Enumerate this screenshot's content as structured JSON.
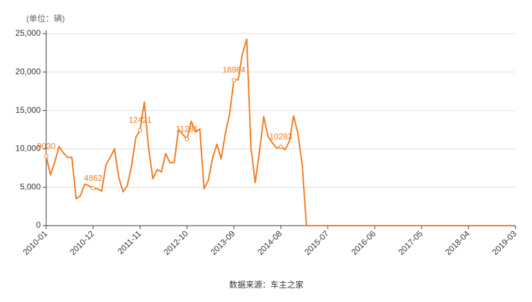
{
  "chart_data": {
    "type": "line",
    "unit_label": "(单位：辆)",
    "source": "数据来源：车主之家",
    "color": "#f47a1f",
    "grid": true,
    "categories": [
      "2010-01",
      null,
      null,
      null,
      null,
      null,
      null,
      null,
      null,
      null,
      null,
      "2010-12",
      null,
      null,
      null,
      null,
      null,
      null,
      null,
      null,
      null,
      null,
      "2011-11",
      null,
      null,
      null,
      null,
      null,
      null,
      null,
      null,
      null,
      null,
      "2012-10",
      null,
      null,
      null,
      null,
      null,
      null,
      null,
      null,
      null,
      null,
      "2013-09",
      null,
      null,
      null,
      null,
      null,
      null,
      null,
      null,
      null,
      null,
      "2014-08",
      null,
      null,
      null,
      null,
      null,
      null,
      null,
      null,
      null,
      null,
      "2015-07",
      null,
      null,
      null,
      null,
      null,
      null,
      null,
      null,
      null,
      null,
      "2016-06",
      null,
      null,
      null,
      null,
      null,
      null,
      null,
      null,
      null,
      null,
      "2017-05",
      null,
      null,
      null,
      null,
      null,
      null,
      null,
      null,
      null,
      null,
      "2018-04",
      null,
      null,
      null,
      null,
      null,
      null,
      null,
      null,
      null,
      null,
      "2019-03"
    ],
    "values": [
      9030,
      6600,
      8300,
      10300,
      9500,
      8900,
      8900,
      3500,
      3900,
      5400,
      5200,
      4862,
      4800,
      4500,
      7900,
      8900,
      10000,
      6300,
      4400,
      5200,
      7800,
      11500,
      12421,
      16100,
      10100,
      6100,
      7300,
      7000,
      9400,
      8200,
      8200,
      12500,
      11900,
      11281,
      13600,
      12200,
      12600,
      4800,
      5900,
      8800,
      10600,
      8700,
      12000,
      14600,
      18964,
      19000,
      22400,
      24300,
      10100,
      5600,
      9700,
      14200,
      11600,
      10800,
      10100,
      10283,
      9900,
      11000,
      14300,
      12000,
      8000,
      0,
      0,
      0,
      0,
      0,
      0,
      0,
      0,
      0,
      0,
      0,
      0,
      0,
      0,
      0,
      0,
      0,
      0,
      0,
      0,
      0,
      0,
      0,
      0,
      0,
      0,
      0,
      0,
      0,
      0,
      0,
      0,
      0,
      0,
      0,
      0,
      0,
      0,
      0,
      0,
      0,
      0,
      0,
      0,
      0,
      0,
      0,
      0,
      0,
      0
    ],
    "value_labels": [
      "9030",
      null,
      null,
      null,
      null,
      null,
      null,
      null,
      null,
      null,
      null,
      "4862",
      null,
      null,
      null,
      null,
      null,
      null,
      null,
      null,
      null,
      null,
      "12421",
      null,
      null,
      null,
      null,
      null,
      null,
      null,
      null,
      null,
      null,
      "11281",
      null,
      null,
      null,
      null,
      null,
      null,
      null,
      null,
      null,
      null,
      "18964",
      null,
      null,
      null,
      null,
      null,
      null,
      null,
      null,
      null,
      null,
      "10283",
      null,
      null,
      null,
      null,
      null,
      null,
      null,
      null,
      null,
      null,
      null,
      null,
      null,
      null,
      null,
      null,
      null,
      null,
      null,
      null,
      null,
      null,
      null,
      null,
      null,
      null,
      null,
      null,
      null,
      null,
      null,
      null,
      null,
      null,
      null,
      null,
      null,
      null,
      null,
      null,
      null,
      null,
      null,
      null,
      null,
      null,
      null,
      null,
      null,
      null,
      null,
      null,
      null,
      null,
      null
    ],
    "ylim": [
      0,
      25000
    ],
    "yticks": [
      0,
      {
        "value": 5000,
        "label": "5,000"
      },
      {
        "value": 10000,
        "label": "10,000"
      },
      {
        "value": 15000,
        "label": "15,000"
      },
      {
        "value": 20000,
        "label": "20,000"
      },
      {
        "value": 25000,
        "label": "25,000"
      }
    ]
  }
}
